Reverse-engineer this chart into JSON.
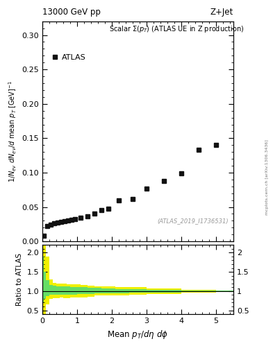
{
  "title_left": "13000 GeV pp",
  "title_right": "Z+Jet",
  "plot_label": "Scalar Σ(p_T) (ATLAS UE in Z production)",
  "legend_label": "ATLAS",
  "watermark": "(ATLAS_2019_I1736531)",
  "side_text": "mcplots.cern.ch [arXiv:1306.3436]",
  "xlabel": "Mean p_T/dη dφ",
  "ylabel": "1/N_{ev} dN_{ev}/d mean p_T [GeV]",
  "ratio_ylabel": "Ratio to ATLAS",
  "xlim": [
    0,
    5.5
  ],
  "ylim_main": [
    0,
    0.32
  ],
  "ylim_ratio": [
    0.4,
    2.2
  ],
  "main_data_x": [
    0.05,
    0.15,
    0.25,
    0.35,
    0.45,
    0.55,
    0.65,
    0.75,
    0.85,
    0.95,
    1.1,
    1.3,
    1.5,
    1.7,
    1.9,
    2.2,
    2.6,
    3.0,
    3.5,
    4.0,
    4.5,
    5.0
  ],
  "main_data_y": [
    0.008,
    0.022,
    0.024,
    0.026,
    0.027,
    0.028,
    0.029,
    0.03,
    0.031,
    0.032,
    0.034,
    0.036,
    0.04,
    0.046,
    0.048,
    0.06,
    0.062,
    0.077,
    0.088,
    0.099,
    0.133,
    0.14
  ],
  "band_x_yellow": [
    0.0,
    0.05,
    0.1,
    0.2,
    0.3,
    0.4,
    0.5,
    0.6,
    0.7,
    0.8,
    0.9,
    1.0,
    1.1,
    1.3,
    1.5,
    1.7,
    1.9,
    2.1,
    2.5,
    3.0,
    4.0,
    5.0,
    5.5
  ],
  "band_y_yellow_lo": [
    0.4,
    0.4,
    0.65,
    0.8,
    0.82,
    0.82,
    0.83,
    0.82,
    0.82,
    0.83,
    0.83,
    0.84,
    0.84,
    0.86,
    0.88,
    0.88,
    0.88,
    0.89,
    0.9,
    0.93,
    0.96,
    0.98,
    0.99
  ],
  "band_y_yellow_hi": [
    2.2,
    2.2,
    1.9,
    1.3,
    1.22,
    1.2,
    1.19,
    1.19,
    1.18,
    1.18,
    1.17,
    1.17,
    1.16,
    1.14,
    1.13,
    1.12,
    1.12,
    1.11,
    1.1,
    1.07,
    1.04,
    1.02,
    1.01
  ],
  "band_x_green": [
    0.0,
    0.05,
    0.1,
    0.2,
    0.3,
    0.4,
    0.5,
    0.6,
    0.7,
    0.8,
    0.9,
    1.0,
    1.1,
    1.3,
    1.5,
    1.7,
    1.9,
    2.1,
    2.5,
    3.0,
    4.0,
    5.0,
    5.5
  ],
  "band_y_green_lo": [
    0.7,
    0.8,
    0.87,
    0.9,
    0.9,
    0.9,
    0.9,
    0.9,
    0.9,
    0.91,
    0.91,
    0.92,
    0.92,
    0.93,
    0.94,
    0.94,
    0.95,
    0.95,
    0.96,
    0.97,
    0.98,
    0.99,
    0.995
  ],
  "band_y_green_hi": [
    1.9,
    1.5,
    1.28,
    1.16,
    1.14,
    1.13,
    1.13,
    1.12,
    1.12,
    1.11,
    1.11,
    1.1,
    1.1,
    1.09,
    1.08,
    1.07,
    1.07,
    1.06,
    1.05,
    1.04,
    1.02,
    1.01,
    1.005
  ],
  "marker_color": "#111111",
  "marker_size": 4.5,
  "background_color": "#ffffff",
  "yticks_main": [
    0.0,
    0.05,
    0.1,
    0.15,
    0.2,
    0.25,
    0.3
  ],
  "yticks_ratio": [
    0.5,
    1.0,
    1.5,
    2.0
  ],
  "xticks": [
    0,
    1,
    2,
    3,
    4,
    5
  ]
}
